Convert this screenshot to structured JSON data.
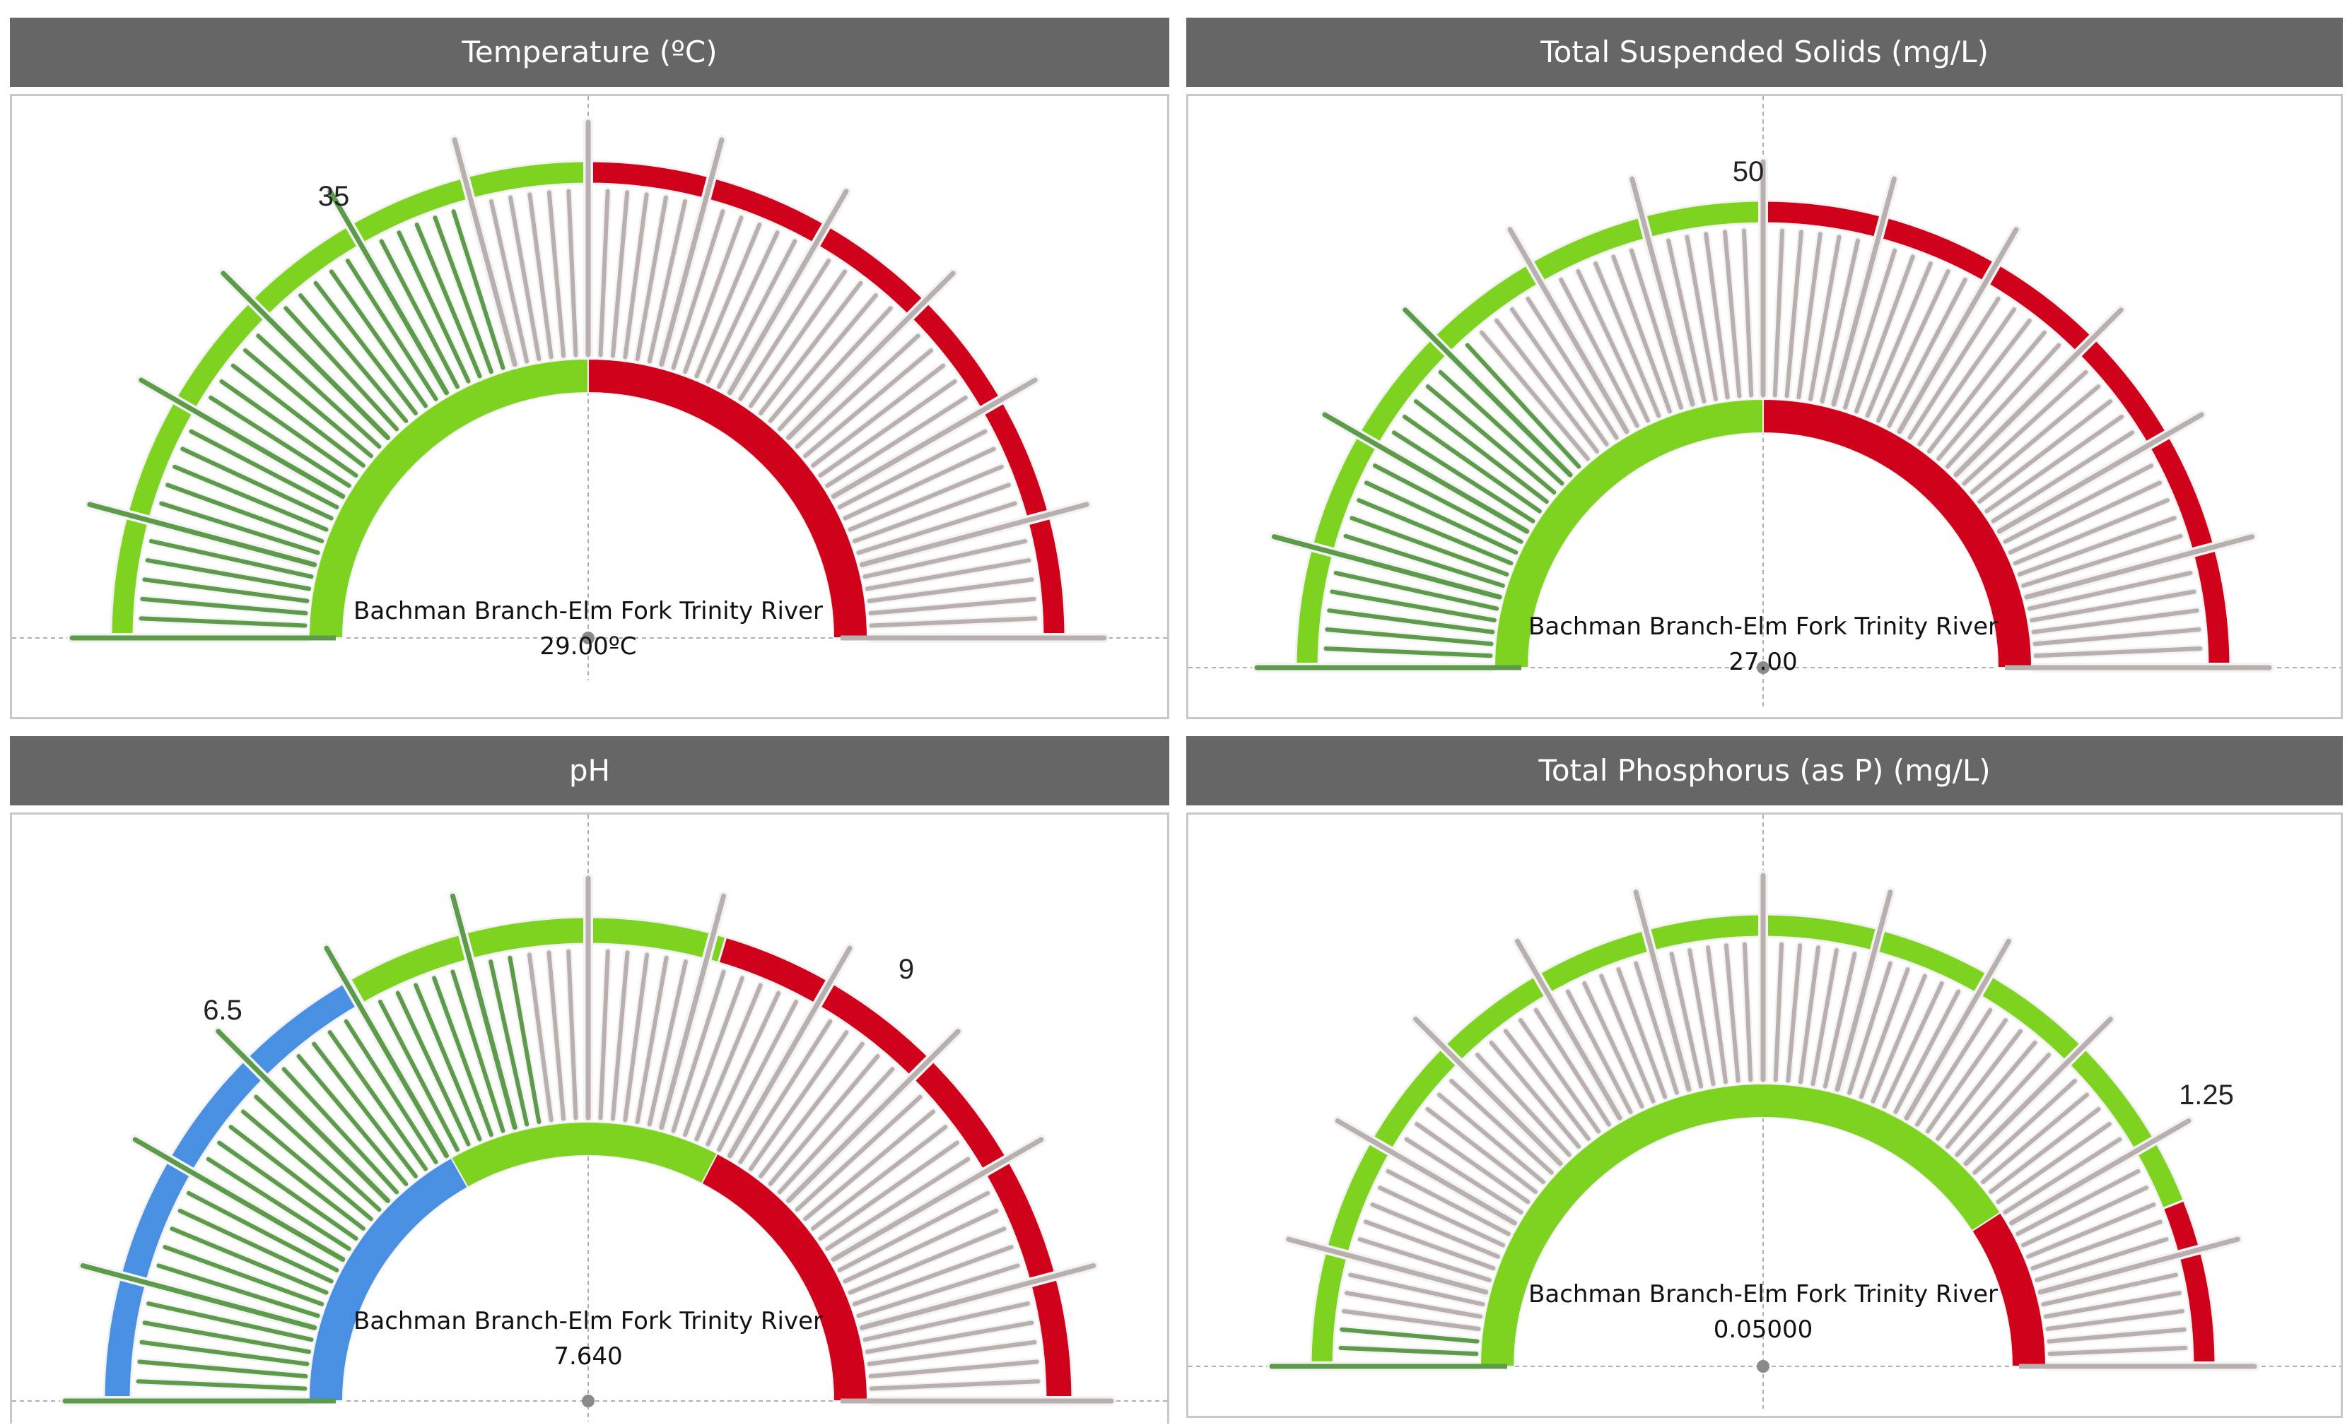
{
  "colors": {
    "green": "#7ED321",
    "red": "#D0021B",
    "blue": "#4A90E2",
    "gray": "#B8B0AE",
    "darkgreen": "#5B9B4A",
    "header": "#666666"
  },
  "chart_data": [
    {
      "type": "gauge",
      "title": "Temperature (ºC)",
      "site": "Bachman Branch-Elm Fork Trinity River",
      "value": 29.0,
      "value_label": "29.00ºC",
      "threshold_labels": [
        "35"
      ],
      "range": [
        0,
        70
      ],
      "bands": [
        {
          "from": 0,
          "to": 35,
          "color": "green"
        },
        {
          "from": 35,
          "to": 70,
          "color": "red"
        }
      ],
      "inner_split": 35
    },
    {
      "type": "gauge",
      "title": "Total Suspended Solids (mg/L)",
      "site": "Bachman Branch-Elm Fork Trinity River",
      "value": 27.0,
      "value_label": "27.00",
      "threshold_labels": [
        "50"
      ],
      "range": [
        0,
        100
      ],
      "bands": [
        {
          "from": 0,
          "to": 50,
          "color": "green"
        },
        {
          "from": 50,
          "to": 100,
          "color": "red"
        }
      ],
      "inner_split": 50
    },
    {
      "type": "gauge",
      "title": "pH",
      "site": "Bachman Branch-Elm Fork Trinity River",
      "value": 7.64,
      "value_label": "7.640",
      "threshold_labels": [
        "6.5",
        "9"
      ],
      "range": [
        3.2,
        13
      ],
      "bands": [
        {
          "from": 3.2,
          "to": 6.5,
          "color": "blue"
        },
        {
          "from": 6.5,
          "to": 9,
          "color": "green"
        },
        {
          "from": 9,
          "to": 13,
          "color": "red"
        }
      ],
      "inner_split": [
        6.5,
        9.6
      ]
    },
    {
      "type": "gauge",
      "title": "Total Phosphorus (as P) (mg/L)",
      "site": "Bachman Branch-Elm Fork Trinity River",
      "value": 0.05,
      "value_label": "0.05000",
      "threshold_labels": [
        "1.25"
      ],
      "range": [
        0,
        1.42
      ],
      "bands": [
        {
          "from": 0,
          "to": 1.25,
          "color": "green"
        },
        {
          "from": 1.25,
          "to": 1.42,
          "color": "red"
        }
      ],
      "inner_split": 1.16
    }
  ]
}
